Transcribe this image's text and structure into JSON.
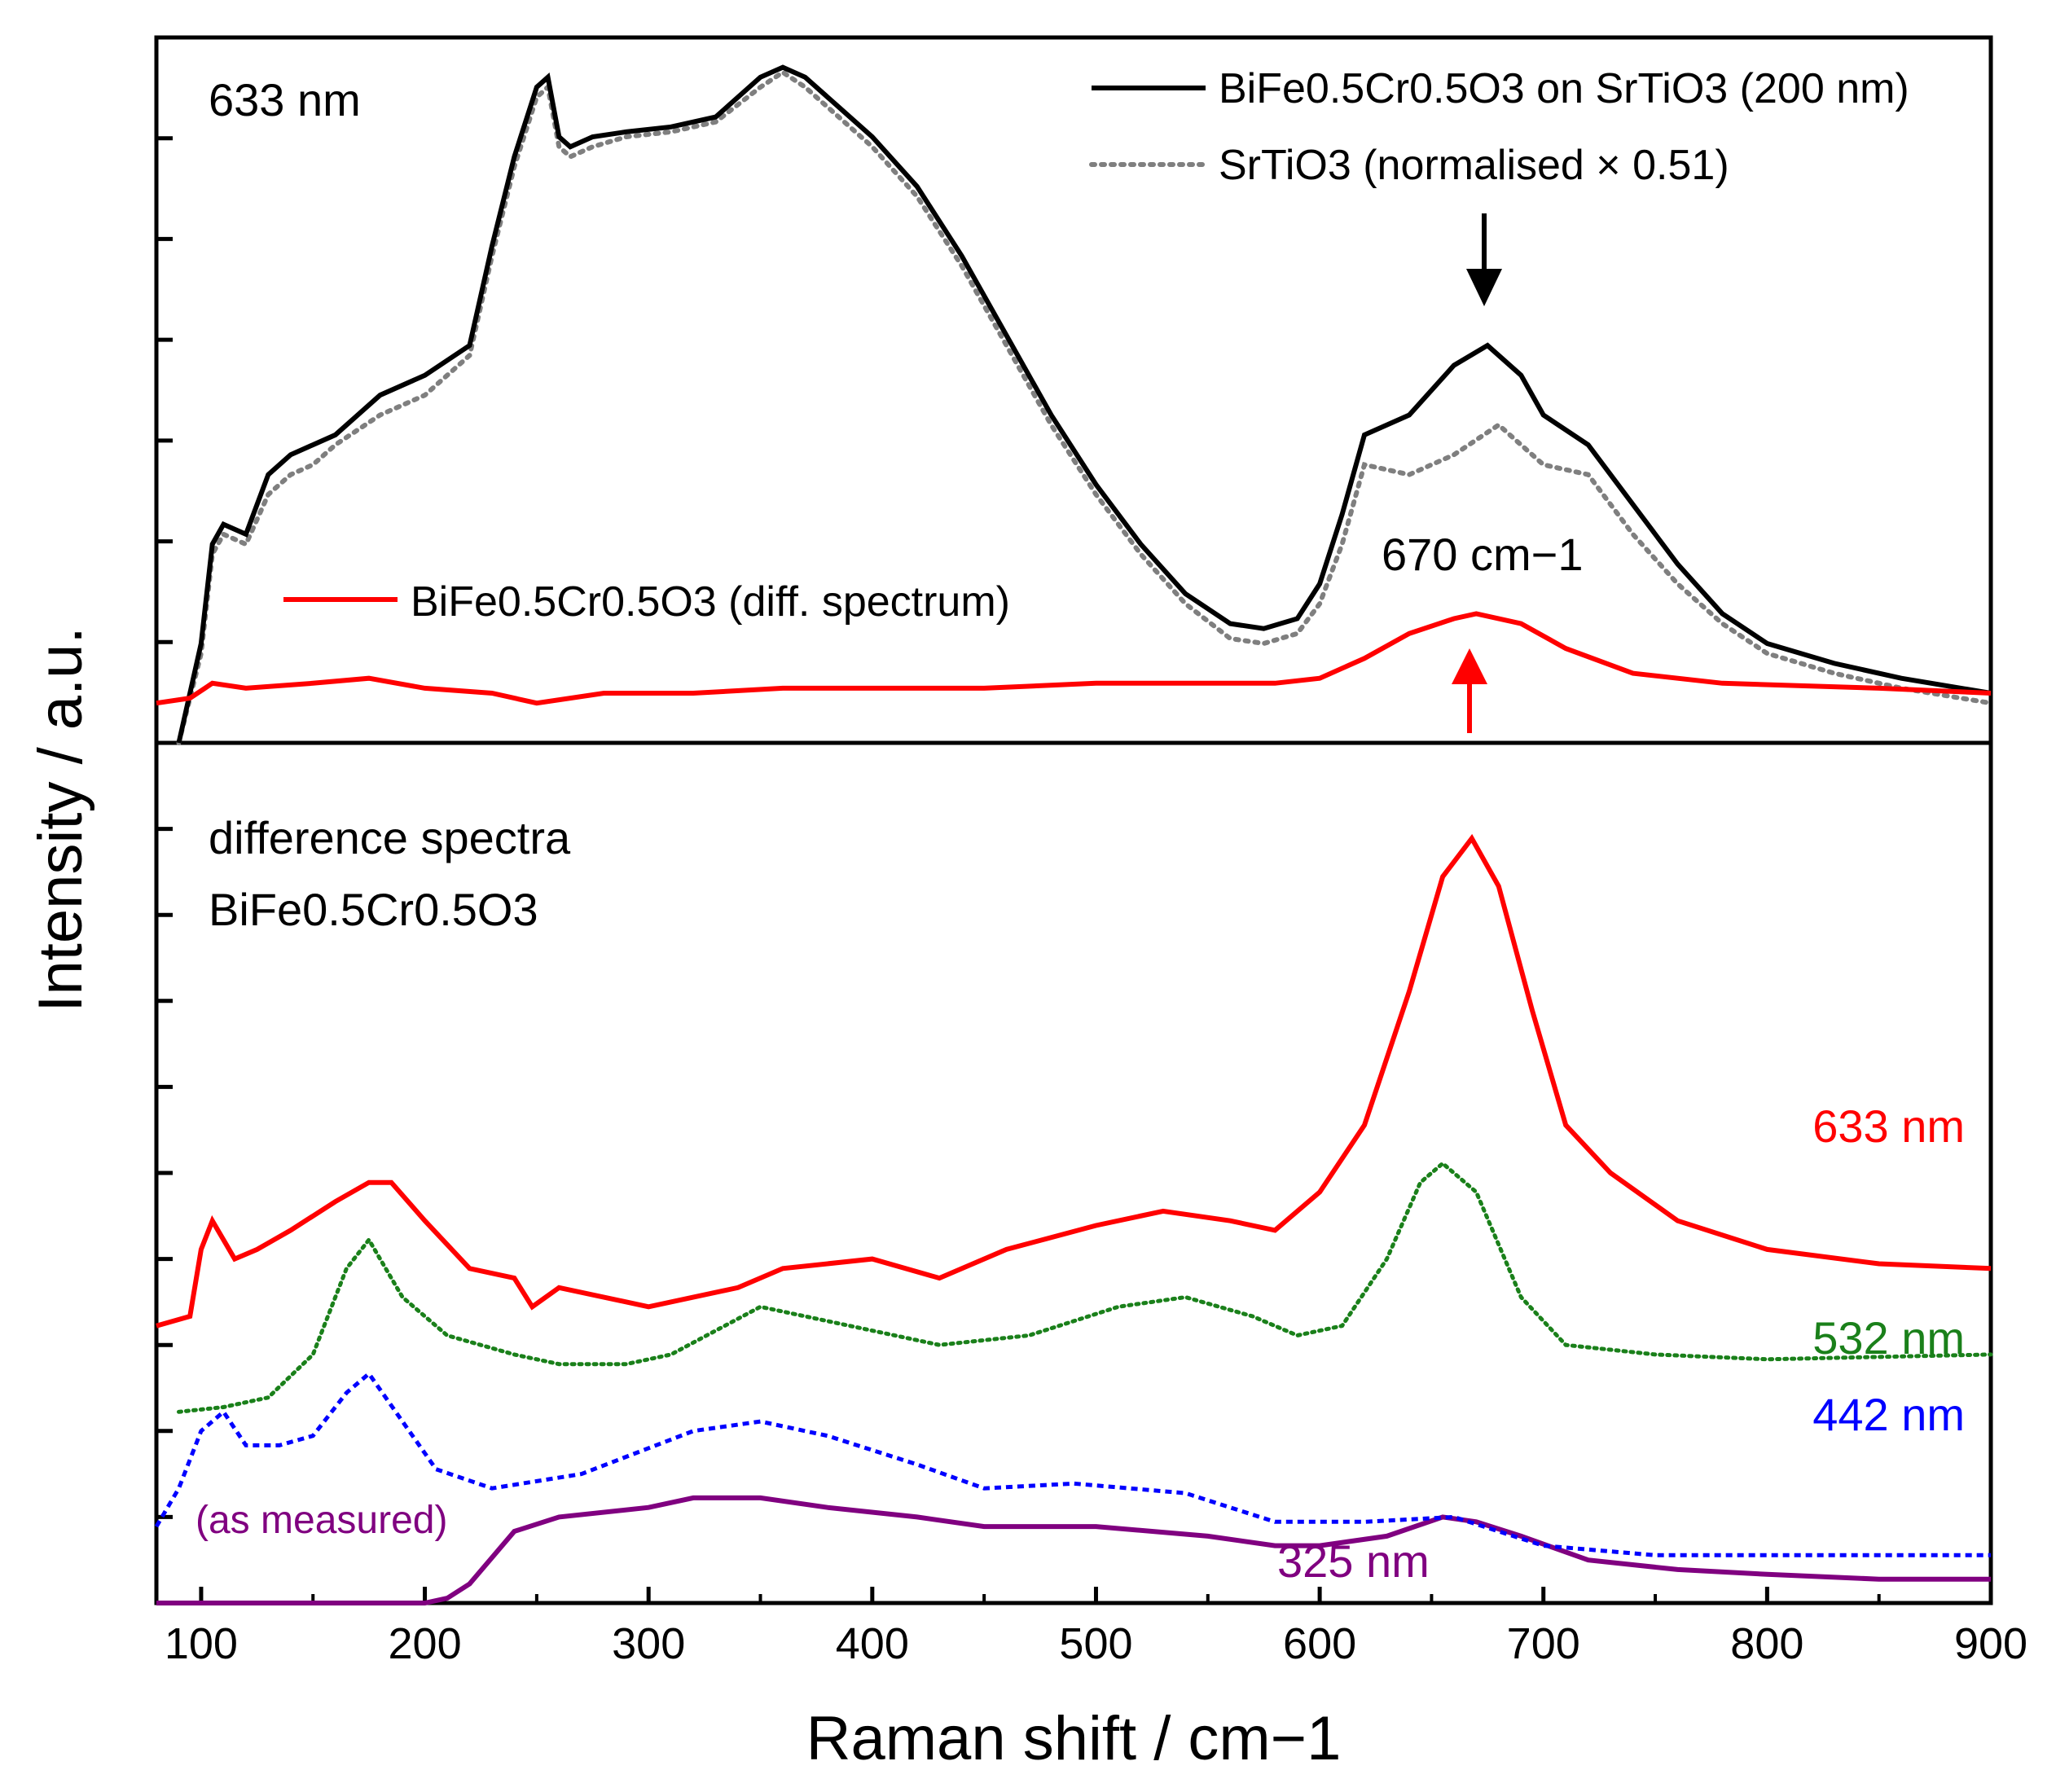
{
  "chart_data": [
    {
      "type": "line",
      "panel": "top",
      "title": "633 nm",
      "xlabel": "Raman shift / cm−1",
      "ylabel": "Intensity / a.u.",
      "xlim": [
        80,
        900
      ],
      "ylim": [
        -0.5,
        6.6
      ],
      "legend_position": "top-right",
      "series": [
        {
          "name": "BiFe0.5Cr0.5O3 on SrTiO3 (200 nm)",
          "color": "#000000",
          "style": "solid",
          "x": [
            90,
            100,
            105,
            110,
            120,
            130,
            140,
            150,
            160,
            180,
            200,
            220,
            230,
            240,
            250,
            255,
            260,
            265,
            275,
            290,
            310,
            330,
            350,
            360,
            370,
            380,
            400,
            420,
            440,
            460,
            480,
            500,
            520,
            540,
            560,
            575,
            590,
            600,
            610,
            620,
            640,
            660,
            675,
            690,
            700,
            720,
            740,
            760,
            780,
            800,
            830,
            860,
            900
          ],
          "y": [
            -0.5,
            0.5,
            1.5,
            1.7,
            1.6,
            2.2,
            2.4,
            2.5,
            2.6,
            3.0,
            3.2,
            3.5,
            4.5,
            5.4,
            6.1,
            6.2,
            5.6,
            5.5,
            5.6,
            5.65,
            5.7,
            5.8,
            6.2,
            6.3,
            6.2,
            6.0,
            5.6,
            5.1,
            4.4,
            3.6,
            2.8,
            2.1,
            1.5,
            1.0,
            0.7,
            0.65,
            0.75,
            1.1,
            1.8,
            2.6,
            2.8,
            3.3,
            3.5,
            3.2,
            2.8,
            2.5,
            1.9,
            1.3,
            0.8,
            0.5,
            0.3,
            0.15,
            0.0
          ]
        },
        {
          "name": "SrTiO3 (normalised × 0.51)",
          "color": "#7f7f7f",
          "style": "dotted",
          "x": [
            90,
            100,
            105,
            110,
            120,
            130,
            140,
            150,
            160,
            180,
            200,
            220,
            230,
            240,
            250,
            255,
            260,
            265,
            275,
            290,
            310,
            330,
            350,
            360,
            370,
            380,
            400,
            420,
            440,
            460,
            480,
            500,
            520,
            540,
            560,
            575,
            590,
            600,
            610,
            620,
            640,
            660,
            680,
            700,
            720,
            740,
            760,
            780,
            800,
            830,
            860,
            900
          ],
          "y": [
            -0.5,
            0.4,
            1.4,
            1.6,
            1.5,
            2.0,
            2.2,
            2.3,
            2.5,
            2.8,
            3.0,
            3.4,
            4.4,
            5.3,
            6.0,
            6.1,
            5.5,
            5.4,
            5.5,
            5.6,
            5.65,
            5.75,
            6.1,
            6.25,
            6.1,
            5.9,
            5.5,
            5.0,
            4.3,
            3.5,
            2.7,
            2.0,
            1.4,
            0.9,
            0.55,
            0.5,
            0.6,
            0.9,
            1.5,
            2.3,
            2.2,
            2.4,
            2.7,
            2.3,
            2.2,
            1.6,
            1.1,
            0.7,
            0.4,
            0.2,
            0.05,
            -0.1
          ]
        },
        {
          "name": "BiFe0.5Cr0.5O3 (diff. spectrum)",
          "color": "#ff0000",
          "style": "solid",
          "x": [
            80,
            95,
            105,
            120,
            150,
            175,
            200,
            230,
            250,
            280,
            320,
            360,
            400,
            450,
            500,
            550,
            580,
            600,
            620,
            640,
            660,
            670,
            690,
            710,
            740,
            780,
            850,
            900
          ],
          "y": [
            -0.1,
            -0.05,
            0.1,
            0.05,
            0.1,
            0.15,
            0.05,
            0.0,
            -0.1,
            0.0,
            0.0,
            0.05,
            0.05,
            0.05,
            0.1,
            0.1,
            0.1,
            0.15,
            0.35,
            0.6,
            0.75,
            0.8,
            0.7,
            0.45,
            0.2,
            0.1,
            0.05,
            0.0
          ]
        }
      ],
      "annotations": [
        {
          "text": "670 cm−1",
          "x": 670
        },
        {
          "text": "black arrow above black peak",
          "x": 672
        },
        {
          "text": "red arrow below red peak",
          "x": 667
        }
      ]
    },
    {
      "type": "line",
      "panel": "bottom",
      "title": "difference spectra BiFe0.5Cr0.5O3",
      "xlabel": "Raman shift / cm−1",
      "xlim": [
        80,
        900
      ],
      "ylim": [
        -1.0,
        8.0
      ],
      "xticks": [
        100,
        200,
        300,
        400,
        500,
        600,
        700,
        800,
        900
      ],
      "series": [
        {
          "name": "633 nm",
          "color": "#ff0000",
          "style": "solid",
          "x": [
            80,
            95,
            100,
            105,
            110,
            115,
            125,
            140,
            160,
            175,
            185,
            200,
            220,
            240,
            248,
            260,
            300,
            340,
            360,
            400,
            430,
            460,
            500,
            530,
            560,
            580,
            600,
            620,
            640,
            655,
            668,
            680,
            695,
            710,
            730,
            760,
            800,
            850,
            900
          ],
          "y": [
            1.9,
            2.0,
            2.7,
            3.0,
            2.8,
            2.6,
            2.7,
            2.9,
            3.2,
            3.4,
            3.4,
            3.0,
            2.5,
            2.4,
            2.1,
            2.3,
            2.1,
            2.3,
            2.5,
            2.6,
            2.4,
            2.7,
            2.95,
            3.1,
            3.0,
            2.9,
            3.3,
            4.0,
            5.4,
            6.6,
            7.0,
            6.5,
            5.2,
            4.0,
            3.5,
            3.0,
            2.7,
            2.55,
            2.5
          ]
        },
        {
          "name": "532 nm",
          "color": "#1a801a",
          "style": "dotted",
          "x": [
            90,
            110,
            130,
            150,
            165,
            175,
            190,
            210,
            240,
            260,
            290,
            310,
            350,
            390,
            430,
            470,
            510,
            540,
            570,
            590,
            610,
            630,
            645,
            655,
            670,
            690,
            710,
            750,
            800,
            900
          ],
          "y": [
            1.0,
            1.05,
            1.15,
            1.6,
            2.5,
            2.8,
            2.2,
            1.8,
            1.6,
            1.5,
            1.5,
            1.6,
            2.1,
            1.9,
            1.7,
            1.8,
            2.1,
            2.2,
            2.0,
            1.8,
            1.9,
            2.6,
            3.4,
            3.6,
            3.3,
            2.2,
            1.7,
            1.6,
            1.55,
            1.6
          ]
        },
        {
          "name": "442 nm",
          "color": "#0000ff",
          "style": "dashed",
          "x": [
            80,
            90,
            100,
            110,
            120,
            135,
            150,
            165,
            175,
            190,
            205,
            230,
            270,
            320,
            350,
            380,
            420,
            450,
            490,
            540,
            580,
            620,
            660,
            700,
            750,
            800,
            900
          ],
          "y": [
            -0.2,
            0.2,
            0.8,
            1.0,
            0.65,
            0.65,
            0.75,
            1.2,
            1.4,
            0.9,
            0.4,
            0.2,
            0.35,
            0.8,
            0.9,
            0.75,
            0.45,
            0.2,
            0.25,
            0.15,
            -0.15,
            -0.15,
            -0.1,
            -0.4,
            -0.5,
            -0.5,
            -0.5
          ]
        },
        {
          "name": "325 nm",
          "color": "#800080",
          "style": "solid",
          "note": "(as measured)",
          "x": [
            80,
            150,
            200,
            210,
            220,
            240,
            260,
            300,
            320,
            350,
            380,
            420,
            450,
            500,
            550,
            580,
            600,
            630,
            655,
            670,
            690,
            720,
            760,
            800,
            850,
            900
          ],
          "y": [
            -1.0,
            -1.0,
            -1.0,
            -0.95,
            -0.8,
            -0.25,
            -0.1,
            0.0,
            0.1,
            0.1,
            0.0,
            -0.1,
            -0.2,
            -0.2,
            -0.3,
            -0.4,
            -0.4,
            -0.3,
            -0.1,
            -0.15,
            -0.3,
            -0.55,
            -0.65,
            -0.7,
            -0.75,
            -0.75
          ]
        }
      ],
      "annotations": [
        {
          "text": "(as measured)"
        }
      ]
    }
  ],
  "figure": {
    "top_title": "633 nm",
    "legend_black": "BiFe0.5Cr0.5O3 on SrTiO3 (200 nm)",
    "legend_gray": "SrTiO3 (normalised × 0.51)",
    "legend_red": "BiFe0.5Cr0.5O3 (diff. spectrum)",
    "peak_label": "670 cm−1",
    "bottom_title_line1": "difference spectra",
    "bottom_title_line2": "BiFe0.5Cr0.5O3",
    "label_633": "633 nm",
    "label_532": "532 nm",
    "label_442": "442 nm",
    "label_325": "325 nm",
    "label_as_measured": "(as measured)",
    "ylabel": "Intensity / a.u.",
    "xlabel": "Raman shift / cm−1",
    "xtick_labels": [
      "100",
      "200",
      "300",
      "400",
      "500",
      "600",
      "700",
      "800",
      "900"
    ]
  }
}
